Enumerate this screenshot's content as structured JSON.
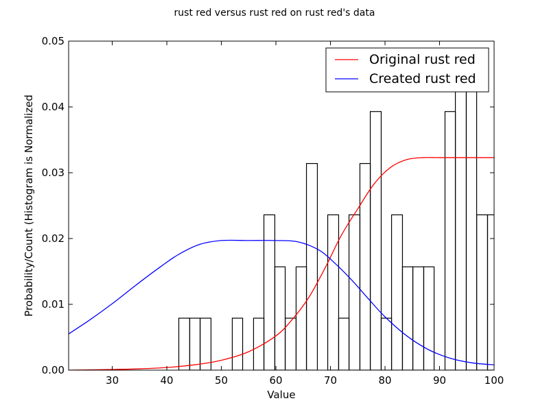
{
  "chart_data": {
    "type": "histogram+line",
    "title": "rust red versus rust red on rust red's data",
    "xlabel": "Value",
    "ylabel": "Probability/Count (Histogram is Normalized",
    "xlim": [
      22,
      100
    ],
    "ylim": [
      0,
      0.05
    ],
    "xticks": [
      30,
      40,
      50,
      60,
      70,
      80,
      90,
      100
    ],
    "xtick_labels": [
      "30",
      "40",
      "50",
      "60",
      "70",
      "80",
      "90",
      "100"
    ],
    "yticks": [
      0,
      0.01,
      0.02,
      0.03,
      0.04,
      0.05
    ],
    "ytick_labels": [
      "0.00",
      "0.01",
      "0.02",
      "0.03",
      "0.04",
      "0.05"
    ],
    "grid": false,
    "legend_placement": "top-right",
    "histogram": {
      "edgecolor": "#000000",
      "facecolor": "none",
      "bins": [
        {
          "x0": 42.2,
          "x1": 44.2,
          "value": 0.0079
        },
        {
          "x0": 44.2,
          "x1": 46.1,
          "value": 0.0079
        },
        {
          "x0": 46.1,
          "x1": 48.1,
          "value": 0.0079
        },
        {
          "x0": 48.1,
          "x1": 50.0,
          "value": 0
        },
        {
          "x0": 50.0,
          "x1": 52.0,
          "value": 0
        },
        {
          "x0": 52.0,
          "x1": 53.9,
          "value": 0.0079
        },
        {
          "x0": 53.9,
          "x1": 55.9,
          "value": 0
        },
        {
          "x0": 55.9,
          "x1": 57.8,
          "value": 0.0079
        },
        {
          "x0": 57.8,
          "x1": 59.8,
          "value": 0.0236
        },
        {
          "x0": 59.8,
          "x1": 61.7,
          "value": 0.0157
        },
        {
          "x0": 61.7,
          "x1": 63.7,
          "value": 0.0079
        },
        {
          "x0": 63.7,
          "x1": 65.6,
          "value": 0.0157
        },
        {
          "x0": 65.6,
          "x1": 67.6,
          "value": 0.0314
        },
        {
          "x0": 67.6,
          "x1": 69.5,
          "value": 0
        },
        {
          "x0": 69.5,
          "x1": 71.5,
          "value": 0.0236
        },
        {
          "x0": 71.5,
          "x1": 73.4,
          "value": 0.0079
        },
        {
          "x0": 73.4,
          "x1": 75.4,
          "value": 0.0236
        },
        {
          "x0": 75.4,
          "x1": 77.3,
          "value": 0.0314
        },
        {
          "x0": 77.3,
          "x1": 79.3,
          "value": 0.0393
        },
        {
          "x0": 79.3,
          "x1": 81.2,
          "value": 0.0079
        },
        {
          "x0": 81.2,
          "x1": 83.2,
          "value": 0.0236
        },
        {
          "x0": 83.2,
          "x1": 85.1,
          "value": 0.0157
        },
        {
          "x0": 85.1,
          "x1": 87.1,
          "value": 0.0157
        },
        {
          "x0": 87.1,
          "x1": 89.0,
          "value": 0.0157
        },
        {
          "x0": 89.0,
          "x1": 91.0,
          "value": 0
        },
        {
          "x0": 91.0,
          "x1": 92.9,
          "value": 0.0393
        },
        {
          "x0": 92.9,
          "x1": 94.9,
          "value": 0.0471
        },
        {
          "x0": 94.9,
          "x1": 96.8,
          "value": 0.0471
        },
        {
          "x0": 96.8,
          "x1": 98.8,
          "value": 0.0236
        },
        {
          "x0": 98.8,
          "x1": 100.7,
          "value": 0.0236
        }
      ]
    },
    "series": [
      {
        "name": "Original rust red",
        "color": "#ff0000",
        "x": [
          22,
          30,
          35,
          40,
          45,
          50,
          55,
          60,
          63,
          66,
          69,
          72,
          75,
          78,
          81,
          84,
          87,
          90,
          95,
          100
        ],
        "y": [
          0.0,
          0.0001,
          0.0002,
          0.0004,
          0.0008,
          0.0015,
          0.0028,
          0.0052,
          0.0077,
          0.011,
          0.0155,
          0.0205,
          0.0245,
          0.0283,
          0.0308,
          0.032,
          0.0323,
          0.0323,
          0.0323,
          0.0323
        ]
      },
      {
        "name": "Created rust red",
        "color": "#0000ff",
        "x": [
          22,
          26,
          30,
          34,
          38,
          42,
          46,
          50,
          55,
          60,
          64,
          68,
          71,
          74,
          77,
          80,
          84,
          88,
          92,
          96,
          100
        ],
        "y": [
          0.0055,
          0.0077,
          0.0101,
          0.0127,
          0.0152,
          0.0175,
          0.0191,
          0.0197,
          0.0197,
          0.0197,
          0.0195,
          0.0182,
          0.0161,
          0.0136,
          0.0108,
          0.0081,
          0.0052,
          0.0031,
          0.0018,
          0.0011,
          0.0008
        ]
      }
    ]
  }
}
